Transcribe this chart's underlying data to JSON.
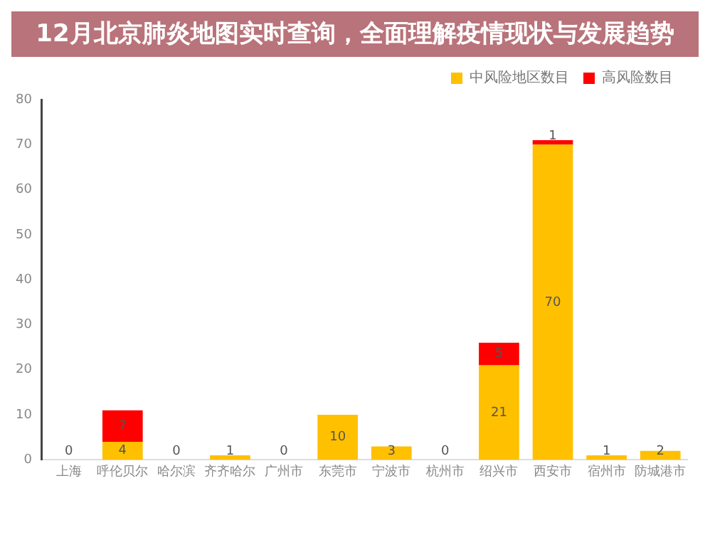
{
  "chart_data": {
    "type": "bar",
    "title": "12月北京肺炎地图实时查询，全面理解疫情现状与发展趋势",
    "categories": [
      "上海",
      "呼伦贝尔",
      "哈尔滨",
      "齐齐哈尔",
      "广州市",
      "东莞市",
      "宁波市",
      "杭州市",
      "绍兴市",
      "西安市",
      "宿州市",
      "防城港市"
    ],
    "series": [
      {
        "name": "中风险地区数目",
        "color": "#ffc000",
        "values": [
          0,
          4,
          0,
          1,
          0,
          10,
          3,
          0,
          21,
          70,
          1,
          2
        ],
        "value_labels": [
          "0",
          "4",
          "0",
          "1",
          "0",
          "10",
          "3",
          "0",
          "21",
          "70",
          "1",
          "2"
        ]
      },
      {
        "name": "高风险数目",
        "color": "#ff0000",
        "values": [
          0,
          7,
          0,
          0,
          0,
          0,
          0,
          0,
          5,
          1,
          0,
          0
        ],
        "value_labels": [
          null,
          "7",
          null,
          null,
          null,
          null,
          null,
          null,
          "5",
          "1",
          null,
          null
        ]
      }
    ],
    "stacked": true,
    "ylim": [
      0,
      80
    ],
    "yticks": [
      0,
      10,
      20,
      30,
      40,
      50,
      60,
      70,
      80
    ],
    "grid": false,
    "legend": "top right"
  }
}
